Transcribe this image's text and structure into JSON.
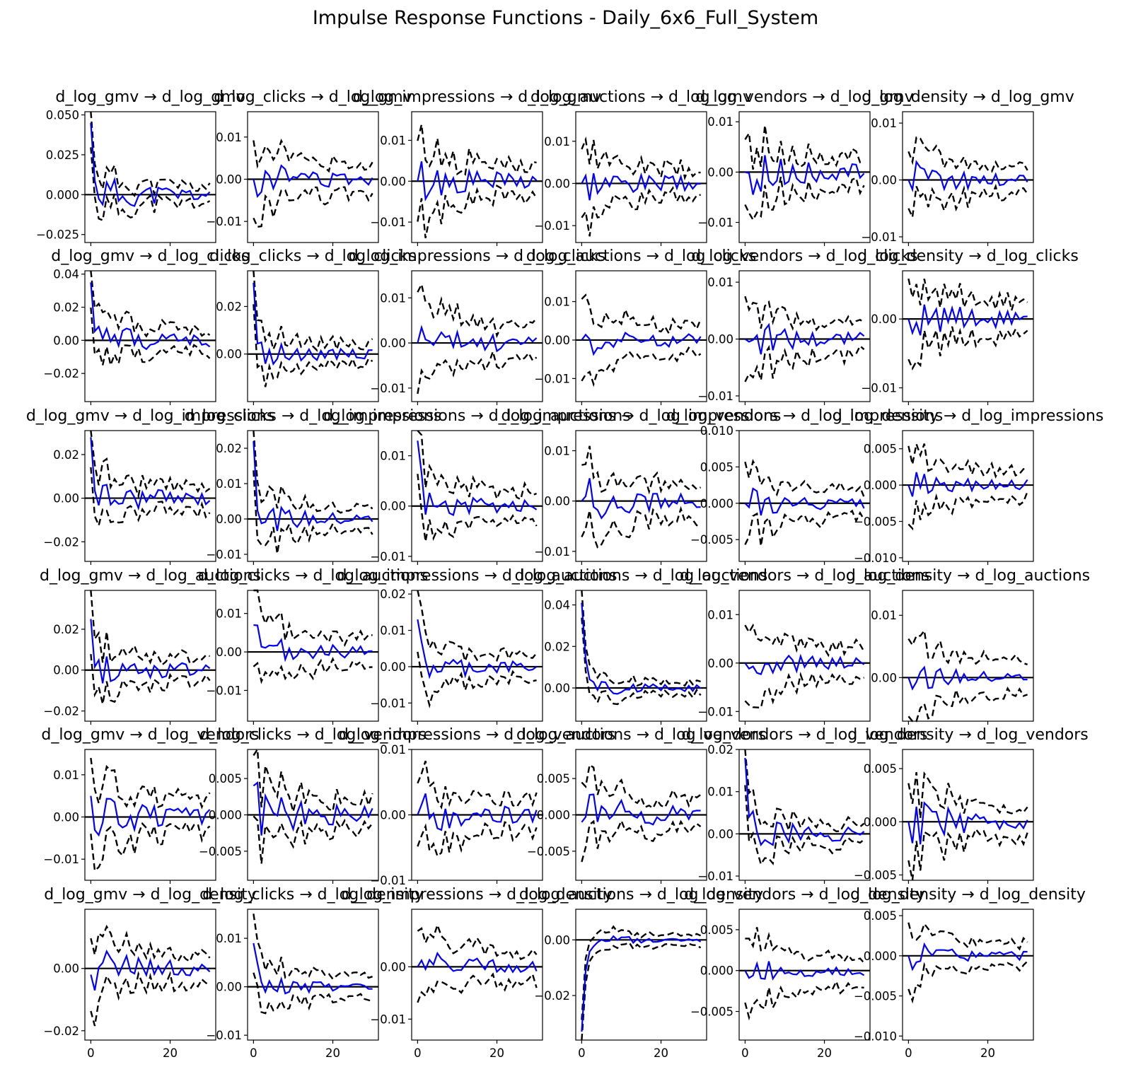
{
  "title": "Impulse Response Functions - Daily_6x6_Full_System",
  "colors": {
    "irf": "#0000ff",
    "band": "#000000",
    "zero": "#000000"
  },
  "chart_data": {
    "type": "line",
    "title": "Impulse Response Functions - Daily_6x6_Full_System",
    "variables": [
      "d_log_gmv",
      "d_log_clicks",
      "d_log_impressions",
      "d_log_auctions",
      "d_log_vendors",
      "d_log_density"
    ],
    "arrow": "→",
    "horizon": [
      0,
      30
    ],
    "x_ticks": [
      0,
      20
    ],
    "x_ticks_shown_bottom_row_only": true,
    "series_names": [
      "irf",
      "upper_band",
      "lower_band",
      "zero_line"
    ],
    "panels": [
      {
        "row": 0,
        "col": 0,
        "title": "d_log_gmv → d_log_gmv",
        "ylim": [
          -0.03,
          0.052
        ],
        "yticks": [
          -0.025,
          0,
          0.025,
          0.05
        ],
        "ytick_labels": [
          "−0.025",
          "0.000",
          "0.025",
          "0.050"
        ],
        "irf_start": 0.045,
        "scale": 0.012,
        "band": 0.011,
        "seed": 11
      },
      {
        "row": 0,
        "col": 1,
        "title": "d_log_clicks → d_log_gmv",
        "ylim": [
          -0.015,
          0.016
        ],
        "yticks": [
          -0.01,
          0,
          0.01
        ],
        "ytick_labels": [
          "−0.01",
          "0.00",
          "0.01"
        ],
        "irf_start": 0,
        "scale": 0.004,
        "band": 0.007,
        "seed": 12
      },
      {
        "row": 0,
        "col": 2,
        "title": "d_log_impressions → d_log_gmv",
        "ylim": [
          -0.015,
          0.017
        ],
        "yticks": [
          -0.01,
          0,
          0.01
        ],
        "ytick_labels": [
          "−0.01",
          "0.00",
          "0.01"
        ],
        "irf_start": 0,
        "scale": 0.005,
        "band": 0.008,
        "seed": 13
      },
      {
        "row": 0,
        "col": 3,
        "title": "d_log_auctions → d_log_gmv",
        "ylim": [
          -0.014,
          0.017
        ],
        "yticks": [
          -0.01,
          0,
          0.01
        ],
        "ytick_labels": [
          "−0.01",
          "0.00",
          "0.01"
        ],
        "irf_start": 0,
        "scale": 0.004,
        "band": 0.007,
        "seed": 14
      },
      {
        "row": 0,
        "col": 4,
        "title": "d_log_vendors → d_log_gmv",
        "ylim": [
          -0.014,
          0.012
        ],
        "yticks": [
          -0.01,
          0,
          0.01
        ],
        "ytick_labels": [
          "−0.01",
          "0.00",
          "0.01"
        ],
        "irf_start": 0,
        "scale": 0.004,
        "band": 0.006,
        "seed": 15
      },
      {
        "row": 0,
        "col": 5,
        "title": "d_log_density → d_log_gmv",
        "ylim": [
          -0.011,
          0.012
        ],
        "yticks": [
          -0.01,
          0,
          0.01
        ],
        "ytick_labels": [
          "−0.01",
          "0.00",
          "0.01"
        ],
        "irf_start": 0,
        "scale": 0.003,
        "band": 0.005,
        "seed": 16
      },
      {
        "row": 1,
        "col": 0,
        "title": "d_log_gmv → d_log_clicks",
        "ylim": [
          -0.037,
          0.042
        ],
        "yticks": [
          -0.02,
          0,
          0.02,
          0.04
        ],
        "ytick_labels": [
          "−0.02",
          "0.00",
          "0.02",
          "0.04"
        ],
        "irf_start": 0.035,
        "scale": 0.01,
        "band": 0.014,
        "seed": 21
      },
      {
        "row": 1,
        "col": 1,
        "title": "d_log_clicks → d_log_clicks",
        "ylim": [
          -0.02,
          0.035
        ],
        "yticks": [
          0,
          0.02
        ],
        "ytick_labels": [
          "0.00",
          "0.02"
        ],
        "irf_start": 0.03,
        "scale": 0.005,
        "band": 0.009,
        "seed": 22
      },
      {
        "row": 1,
        "col": 2,
        "title": "d_log_impressions → d_log_clicks",
        "ylim": [
          -0.013,
          0.016
        ],
        "yticks": [
          -0.01,
          0,
          0.01
        ],
        "ytick_labels": [
          "−0.01",
          "0.00",
          "0.01"
        ],
        "irf_start": 0,
        "scale": 0.004,
        "band": 0.008,
        "seed": 23
      },
      {
        "row": 1,
        "col": 3,
        "title": "d_log_auctions → d_log_clicks",
        "ylim": [
          -0.016,
          0.018
        ],
        "yticks": [
          -0.01,
          0,
          0.01
        ],
        "ytick_labels": [
          "−0.01",
          "0.00",
          "0.01"
        ],
        "irf_start": 0,
        "scale": 0.004,
        "band": 0.008,
        "seed": 24
      },
      {
        "row": 1,
        "col": 4,
        "title": "d_log_vendors → d_log_clicks",
        "ylim": [
          -0.011,
          0.012
        ],
        "yticks": [
          -0.01,
          0,
          0.01
        ],
        "ytick_labels": [
          "−0.01",
          "0.00",
          "0.01"
        ],
        "irf_start": 0,
        "scale": 0.003,
        "band": 0.006,
        "seed": 25
      },
      {
        "row": 1,
        "col": 5,
        "title": "d_log_density → d_log_clicks",
        "ylim": [
          -0.012,
          0.007
        ],
        "yticks": [
          -0.01,
          0
        ],
        "ytick_labels": [
          "−0.01",
          "0.00"
        ],
        "irf_start": 0,
        "scale": 0.003,
        "band": 0.005,
        "seed": 26
      },
      {
        "row": 2,
        "col": 0,
        "title": "d_log_gmv → d_log_impressions",
        "ylim": [
          -0.029,
          0.031
        ],
        "yticks": [
          -0.02,
          0,
          0.02
        ],
        "ytick_labels": [
          "−0.02",
          "0.00",
          "0.02"
        ],
        "irf_start": 0.028,
        "scale": 0.008,
        "band": 0.011,
        "seed": 31
      },
      {
        "row": 2,
        "col": 1,
        "title": "d_log_clicks → d_log_impressions",
        "ylim": [
          -0.012,
          0.025
        ],
        "yticks": [
          -0.01,
          0,
          0.01,
          0.02
        ],
        "ytick_labels": [
          "−0.01",
          "0.00",
          "0.01",
          "0.02"
        ],
        "irf_start": 0.022,
        "scale": 0.004,
        "band": 0.007,
        "seed": 32
      },
      {
        "row": 2,
        "col": 2,
        "title": "d_log_impressions → d_log_impressions",
        "ylim": [
          -0.011,
          0.015
        ],
        "yticks": [
          -0.01,
          0,
          0.01
        ],
        "ytick_labels": [
          "−0.01",
          "0.00",
          "0.01"
        ],
        "irf_start": 0.013,
        "scale": 0.003,
        "band": 0.006,
        "seed": 33
      },
      {
        "row": 2,
        "col": 3,
        "title": "d_log_auctions → d_log_impressions",
        "ylim": [
          -0.012,
          0.014
        ],
        "yticks": [
          -0.01,
          0,
          0.01
        ],
        "ytick_labels": [
          "−0.01",
          "0.00",
          "0.01"
        ],
        "irf_start": 0,
        "scale": 0.004,
        "band": 0.007,
        "seed": 34
      },
      {
        "row": 2,
        "col": 4,
        "title": "d_log_vendors → d_log_impressions",
        "ylim": [
          -0.008,
          0.01
        ],
        "yticks": [
          -0.005,
          0,
          0.005,
          0.01
        ],
        "ytick_labels": [
          "−0.005",
          "0.000",
          "0.005",
          "0.010"
        ],
        "irf_start": 0,
        "scale": 0.002,
        "band": 0.004,
        "seed": 35
      },
      {
        "row": 2,
        "col": 5,
        "title": "d_log_density → d_log_impressions",
        "ylim": [
          -0.0105,
          0.0075
        ],
        "yticks": [
          -0.01,
          -0.005,
          0,
          0.005
        ],
        "ytick_labels": [
          "−0.010",
          "−0.005",
          "0.000",
          "0.005"
        ],
        "irf_start": 0,
        "scale": 0.002,
        "band": 0.004,
        "seed": 36
      },
      {
        "row": 3,
        "col": 0,
        "title": "d_log_gmv → d_log_auctions",
        "ylim": [
          -0.025,
          0.039
        ],
        "yticks": [
          -0.02,
          0,
          0.02
        ],
        "ytick_labels": [
          "−0.02",
          "0.00",
          "0.02"
        ],
        "irf_start": 0.025,
        "scale": 0.008,
        "band": 0.012,
        "seed": 41
      },
      {
        "row": 3,
        "col": 1,
        "title": "d_log_clicks → d_log_auctions",
        "ylim": [
          -0.018,
          0.016
        ],
        "yticks": [
          -0.01,
          0,
          0.01
        ],
        "ytick_labels": [
          "−0.01",
          "0.00",
          "0.01"
        ],
        "irf_start": 0.007,
        "scale": 0.004,
        "band": 0.008,
        "seed": 42
      },
      {
        "row": 3,
        "col": 2,
        "title": "d_log_impressions → d_log_auctions",
        "ylim": [
          -0.015,
          0.021
        ],
        "yticks": [
          -0.01,
          0,
          0.01,
          0.02
        ],
        "ytick_labels": [
          "−0.01",
          "0.00",
          "0.01",
          "0.02"
        ],
        "irf_start": 0.013,
        "scale": 0.004,
        "band": 0.007,
        "seed": 43
      },
      {
        "row": 3,
        "col": 3,
        "title": "d_log_auctions → d_log_auctions",
        "ylim": [
          -0.016,
          0.047
        ],
        "yticks": [
          0,
          0.02,
          0.04
        ],
        "ytick_labels": [
          "0.00",
          "0.02",
          "0.04"
        ],
        "irf_start": 0.041,
        "scale": 0.004,
        "band": 0.006,
        "seed": 44
      },
      {
        "row": 3,
        "col": 4,
        "title": "d_log_vendors → d_log_auctions",
        "ylim": [
          -0.012,
          0.015
        ],
        "yticks": [
          -0.01,
          0,
          0.01
        ],
        "ytick_labels": [
          "−0.01",
          "0.00",
          "0.01"
        ],
        "irf_start": 0,
        "scale": 0.003,
        "band": 0.007,
        "seed": 45
      },
      {
        "row": 3,
        "col": 5,
        "title": "d_log_density → d_log_auctions",
        "ylim": [
          -0.007,
          0.014
        ],
        "yticks": [
          0,
          0.01
        ],
        "ytick_labels": [
          "0.00",
          "0.01"
        ],
        "irf_start": 0,
        "scale": 0.002,
        "band": 0.006,
        "seed": 46
      },
      {
        "row": 4,
        "col": 0,
        "title": "d_log_gmv → d_log_vendors",
        "ylim": [
          -0.015,
          0.016
        ],
        "yticks": [
          -0.01,
          0,
          0.01
        ],
        "ytick_labels": [
          "−0.01",
          "0.00",
          "0.01"
        ],
        "irf_start": 0.005,
        "scale": 0.005,
        "band": 0.008,
        "seed": 51
      },
      {
        "row": 4,
        "col": 1,
        "title": "d_log_clicks → d_log_vendors",
        "ylim": [
          -0.009,
          0.009
        ],
        "yticks": [
          -0.005,
          0,
          0.005
        ],
        "ytick_labels": [
          "−0.005",
          "0.000",
          "0.005"
        ],
        "irf_start": 0.004,
        "scale": 0.003,
        "band": 0.004,
        "seed": 52
      },
      {
        "row": 4,
        "col": 2,
        "title": "d_log_impressions → d_log_vendors",
        "ylim": [
          -0.01,
          0.01
        ],
        "yticks": [
          -0.01,
          0,
          0.01
        ],
        "ytick_labels": [
          "−0.01",
          "0.00",
          "0.01"
        ],
        "irf_start": 0,
        "scale": 0.003,
        "band": 0.005,
        "seed": 53
      },
      {
        "row": 4,
        "col": 3,
        "title": "d_log_auctions → d_log_vendors",
        "ylim": [
          -0.009,
          0.009
        ],
        "yticks": [
          -0.005,
          0,
          0.005
        ],
        "ytick_labels": [
          "−0.005",
          "0.000",
          "0.005"
        ],
        "irf_start": -0.001,
        "scale": 0.003,
        "band": 0.004,
        "seed": 54
      },
      {
        "row": 4,
        "col": 4,
        "title": "d_log_vendors → d_log_vendors",
        "ylim": [
          -0.011,
          0.02
        ],
        "yticks": [
          -0.01,
          0,
          0.01,
          0.02
        ],
        "ytick_labels": [
          "−0.01",
          "0.00",
          "0.01",
          "0.02"
        ],
        "irf_start": 0.018,
        "scale": 0.004,
        "band": 0.005,
        "seed": 55
      },
      {
        "row": 4,
        "col": 5,
        "title": "d_log_density → d_log_vendors",
        "ylim": [
          -0.0055,
          0.0068
        ],
        "yticks": [
          -0.005,
          0,
          0.005
        ],
        "ytick_labels": [
          "−0.005",
          "0.000",
          "0.005"
        ],
        "irf_start": 0,
        "scale": 0.002,
        "band": 0.003,
        "seed": 56
      },
      {
        "row": 5,
        "col": 0,
        "title": "d_log_gmv → d_log_density",
        "ylim": [
          -0.023,
          0.019
        ],
        "yticks": [
          -0.02,
          0
        ],
        "ytick_labels": [
          "−0.02",
          "0.00"
        ],
        "irf_start": -0.002,
        "scale": 0.006,
        "band": 0.009,
        "seed": 61
      },
      {
        "row": 5,
        "col": 1,
        "title": "d_log_clicks → d_log_density",
        "ylim": [
          -0.011,
          0.016
        ],
        "yticks": [
          -0.01,
          0,
          0.01
        ],
        "ytick_labels": [
          "−0.01",
          "0.00",
          "0.01"
        ],
        "irf_start": 0.009,
        "scale": 0.002,
        "band": 0.005,
        "seed": 62
      },
      {
        "row": 5,
        "col": 2,
        "title": "d_log_impressions → d_log_density",
        "ylim": [
          -0.014,
          0.011
        ],
        "yticks": [
          -0.01,
          0
        ],
        "ytick_labels": [
          "−0.01",
          "0.00"
        ],
        "irf_start": 0,
        "scale": 0.003,
        "band": 0.006,
        "seed": 63
      },
      {
        "row": 5,
        "col": 3,
        "title": "d_log_auctions → d_log_density",
        "ylim": [
          -0.036,
          0.011
        ],
        "yticks": [
          -0.02,
          0
        ],
        "ytick_labels": [
          "−0.02",
          "0.00"
        ],
        "irf_start": -0.033,
        "scale": 0.002,
        "band": 0.004,
        "seed": 64
      },
      {
        "row": 5,
        "col": 4,
        "title": "d_log_vendors → d_log_density",
        "ylim": [
          -0.0085,
          0.0075
        ],
        "yticks": [
          -0.005,
          0,
          0.005
        ],
        "ytick_labels": [
          "−0.005",
          "0.000",
          "0.005"
        ],
        "irf_start": 0,
        "scale": 0.0015,
        "band": 0.004,
        "seed": 65
      },
      {
        "row": 5,
        "col": 5,
        "title": "d_log_density → d_log_density",
        "ylim": [
          -0.0105,
          0.0058
        ],
        "yticks": [
          -0.01,
          -0.005,
          0,
          0.005
        ],
        "ytick_labels": [
          "−0.010",
          "−0.005",
          "0.000",
          "0.005"
        ],
        "irf_start": 0,
        "scale": 0.0015,
        "band": 0.003,
        "seed": 66
      }
    ]
  }
}
